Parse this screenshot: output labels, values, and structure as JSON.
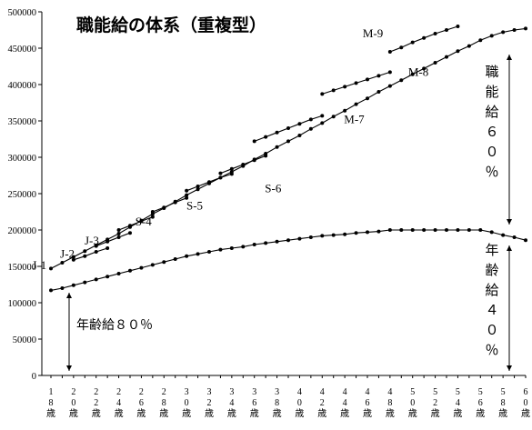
{
  "chart_data": {
    "type": "line",
    "title": "職能給の体系（重複型）",
    "xlabel": "",
    "ylabel": "",
    "x": [
      18,
      19,
      20,
      21,
      22,
      23,
      24,
      25,
      26,
      27,
      28,
      29,
      30,
      31,
      32,
      33,
      34,
      35,
      36,
      37,
      38,
      39,
      40,
      41,
      42,
      43,
      44,
      45,
      46,
      47,
      48,
      49,
      50,
      51,
      52,
      53,
      54,
      55,
      56,
      57,
      58,
      59,
      60
    ],
    "x_tick_labels": [
      "18歳",
      "20歳",
      "22歳",
      "24歳",
      "26歳",
      "28歳",
      "30歳",
      "32歳",
      "34歳",
      "36歳",
      "38歳",
      "40歳",
      "42歳",
      "44歳",
      "46歳",
      "48歳",
      "50歳",
      "52歳",
      "54歳",
      "56歳",
      "58歳",
      "60歳"
    ],
    "x_tick_values": [
      18,
      20,
      22,
      24,
      26,
      28,
      30,
      32,
      34,
      36,
      38,
      40,
      42,
      44,
      46,
      48,
      50,
      52,
      54,
      56,
      58,
      60
    ],
    "ylim": [
      0,
      500000
    ],
    "y_ticks": [
      0,
      50000,
      100000,
      150000,
      200000,
      250000,
      300000,
      350000,
      400000,
      450000,
      500000
    ],
    "grid": false,
    "series": [
      {
        "name": "",
        "role": "total_upper",
        "points": [
          [
            18,
            147000
          ],
          [
            19,
            155000
          ],
          [
            20,
            163000
          ],
          [
            21,
            171000
          ],
          [
            22,
            179000
          ],
          [
            23,
            187000
          ],
          [
            24,
            195000
          ],
          [
            25,
            204000
          ],
          [
            26,
            213000
          ],
          [
            27,
            222000
          ],
          [
            28,
            230000
          ],
          [
            29,
            239000
          ],
          [
            30,
            248000
          ],
          [
            31,
            256000
          ],
          [
            32,
            264000
          ],
          [
            33,
            272000
          ],
          [
            34,
            280000
          ],
          [
            35,
            288000
          ],
          [
            36,
            297000
          ],
          [
            37,
            305000
          ],
          [
            38,
            314000
          ],
          [
            39,
            322000
          ],
          [
            40,
            330000
          ],
          [
            41,
            339000
          ],
          [
            42,
            347000
          ],
          [
            43,
            356000
          ],
          [
            44,
            364000
          ],
          [
            45,
            373000
          ],
          [
            46,
            381000
          ],
          [
            47,
            390000
          ],
          [
            48,
            398000
          ],
          [
            49,
            406000
          ],
          [
            50,
            414000
          ],
          [
            51,
            422000
          ],
          [
            52,
            430000
          ],
          [
            53,
            438000
          ],
          [
            54,
            446000
          ],
          [
            55,
            453000
          ],
          [
            56,
            461000
          ],
          [
            57,
            467000
          ],
          [
            58,
            472000
          ],
          [
            59,
            475000
          ],
          [
            60,
            477000
          ]
        ]
      },
      {
        "name": "",
        "role": "age_pay",
        "points": [
          [
            18,
            117000
          ],
          [
            19,
            120000
          ],
          [
            20,
            124000
          ],
          [
            21,
            128000
          ],
          [
            22,
            132000
          ],
          [
            23,
            136000
          ],
          [
            24,
            140000
          ],
          [
            25,
            144000
          ],
          [
            26,
            148000
          ],
          [
            27,
            152000
          ],
          [
            28,
            156000
          ],
          [
            29,
            160000
          ],
          [
            30,
            164000
          ],
          [
            31,
            167000
          ],
          [
            32,
            170000
          ],
          [
            33,
            173000
          ],
          [
            34,
            175000
          ],
          [
            35,
            177000
          ],
          [
            36,
            180000
          ],
          [
            37,
            182000
          ],
          [
            38,
            184000
          ],
          [
            39,
            186000
          ],
          [
            40,
            188000
          ],
          [
            41,
            190000
          ],
          [
            42,
            192000
          ],
          [
            43,
            193000
          ],
          [
            44,
            194000
          ],
          [
            45,
            196000
          ],
          [
            46,
            197000
          ],
          [
            47,
            198000
          ],
          [
            48,
            200000
          ],
          [
            49,
            200000
          ],
          [
            50,
            200000
          ],
          [
            51,
            200000
          ],
          [
            52,
            200000
          ],
          [
            53,
            200000
          ],
          [
            54,
            200000
          ],
          [
            55,
            200000
          ],
          [
            56,
            200000
          ],
          [
            57,
            197000
          ],
          [
            58,
            193000
          ],
          [
            59,
            190000
          ],
          [
            60,
            186000
          ]
        ]
      },
      {
        "name": "J-1",
        "points": [
          [
            20,
            159000
          ],
          [
            21,
            164000
          ],
          [
            22,
            170000
          ],
          [
            23,
            175000
          ]
        ]
      },
      {
        "name": "J-2",
        "points": [
          [
            22,
            178000
          ],
          [
            23,
            184000
          ],
          [
            24,
            190000
          ],
          [
            25,
            196000
          ]
        ]
      },
      {
        "name": "J-3",
        "points": [
          [
            24,
            200000
          ],
          [
            25,
            206000
          ],
          [
            26,
            212000
          ],
          [
            27,
            218000
          ]
        ]
      },
      {
        "name": "S-4",
        "points": [
          [
            27,
            225000
          ],
          [
            28,
            231000
          ],
          [
            29,
            238000
          ],
          [
            30,
            244000
          ]
        ]
      },
      {
        "name": "S-5",
        "points": [
          [
            30,
            254000
          ],
          [
            31,
            260000
          ],
          [
            32,
            266000
          ],
          [
            33,
            272000
          ],
          [
            34,
            277000
          ]
        ]
      },
      {
        "name": "S-6",
        "points": [
          [
            33,
            278000
          ],
          [
            34,
            284000
          ],
          [
            35,
            290000
          ],
          [
            36,
            296000
          ],
          [
            37,
            302000
          ]
        ]
      },
      {
        "name": "M-7",
        "points": [
          [
            36,
            322000
          ],
          [
            37,
            328000
          ],
          [
            38,
            334000
          ],
          [
            39,
            340000
          ],
          [
            40,
            346000
          ],
          [
            41,
            352000
          ],
          [
            42,
            357000
          ]
        ]
      },
      {
        "name": "M-8",
        "points": [
          [
            42,
            387000
          ],
          [
            43,
            392000
          ],
          [
            44,
            397000
          ],
          [
            45,
            402000
          ],
          [
            46,
            407000
          ],
          [
            47,
            412000
          ],
          [
            48,
            417000
          ]
        ]
      },
      {
        "name": "M-9",
        "points": [
          [
            48,
            445000
          ],
          [
            49,
            451000
          ],
          [
            50,
            458000
          ],
          [
            51,
            464000
          ],
          [
            52,
            470000
          ],
          [
            53,
            475000
          ],
          [
            54,
            480000
          ]
        ]
      }
    ],
    "annotations": {
      "v_label_top": "職能給６０％",
      "v_label_bottom": "年齢給４０％",
      "left_label": "年齢給８０％"
    }
  }
}
